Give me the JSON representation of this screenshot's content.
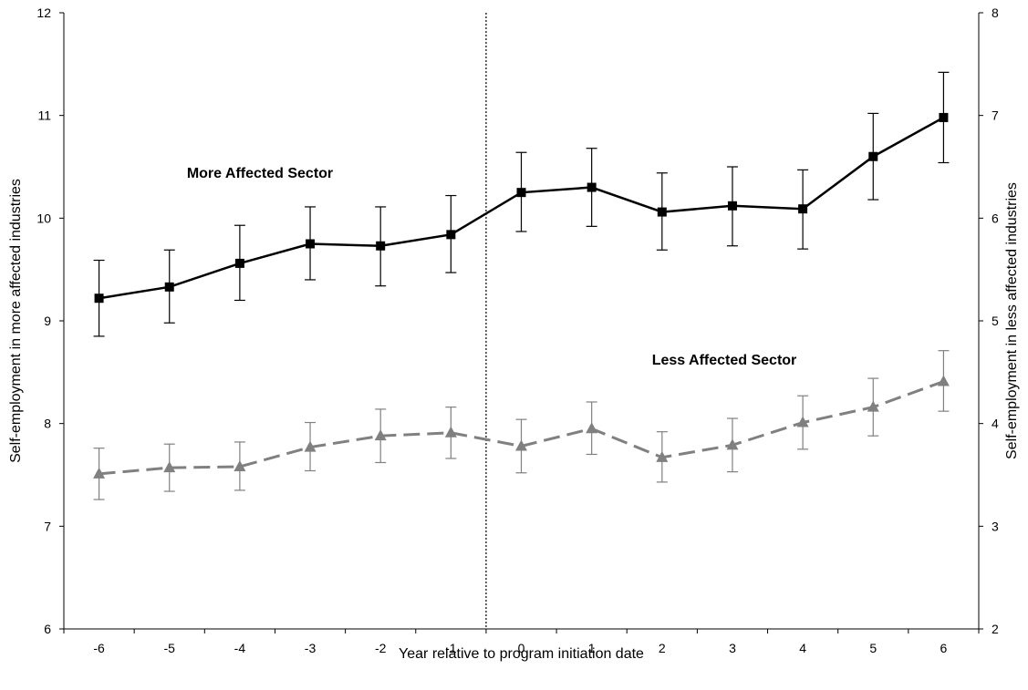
{
  "chart_data": {
    "type": "line",
    "title": "",
    "xlabel": "Year relative to program initiation date",
    "ylabel": "Self-employment in more affected industries",
    "y2label": "Self-employment in less affected industries",
    "categories": [
      "-6",
      "-5",
      "-4",
      "-3",
      "-2",
      "-1",
      "0",
      "1",
      "2",
      "3",
      "4",
      "5",
      "6"
    ],
    "ylim": [
      6,
      12
    ],
    "y2lim": [
      2,
      8
    ],
    "yticks": [
      "6",
      "7",
      "8",
      "9",
      "10",
      "11",
      "12"
    ],
    "y2ticks": [
      "2",
      "3",
      "4",
      "5",
      "6",
      "7",
      "8"
    ],
    "grid": false,
    "program_initiation_marker": "between -1 and 0",
    "series": [
      {
        "name": "More Affected Sector",
        "axis": "left",
        "color": "#000000",
        "line_style": "solid",
        "marker": "square",
        "values": [
          9.22,
          9.33,
          9.56,
          9.75,
          9.73,
          9.84,
          10.25,
          10.3,
          10.06,
          10.12,
          10.09,
          10.6,
          10.98
        ],
        "err_low": [
          8.85,
          8.98,
          9.2,
          9.4,
          9.34,
          9.47,
          9.87,
          9.92,
          9.69,
          9.73,
          9.7,
          10.18,
          10.54
        ],
        "err_high": [
          9.59,
          9.69,
          9.93,
          10.11,
          10.11,
          10.22,
          10.64,
          10.68,
          10.44,
          10.5,
          10.47,
          11.02,
          11.42
        ]
      },
      {
        "name": "Less Affected Sector",
        "axis": "right",
        "color": "#808080",
        "line_style": "dashed",
        "marker": "triangle",
        "values": [
          3.51,
          3.57,
          3.58,
          3.77,
          3.88,
          3.91,
          3.78,
          3.95,
          3.67,
          3.79,
          4.01,
          4.16,
          4.41
        ],
        "err_low": [
          3.26,
          3.34,
          3.35,
          3.54,
          3.62,
          3.66,
          3.52,
          3.7,
          3.43,
          3.53,
          3.75,
          3.88,
          4.12
        ],
        "err_high": [
          3.76,
          3.8,
          3.82,
          4.01,
          4.14,
          4.16,
          4.04,
          4.21,
          3.92,
          4.05,
          4.27,
          4.44,
          4.71
        ]
      }
    ]
  }
}
